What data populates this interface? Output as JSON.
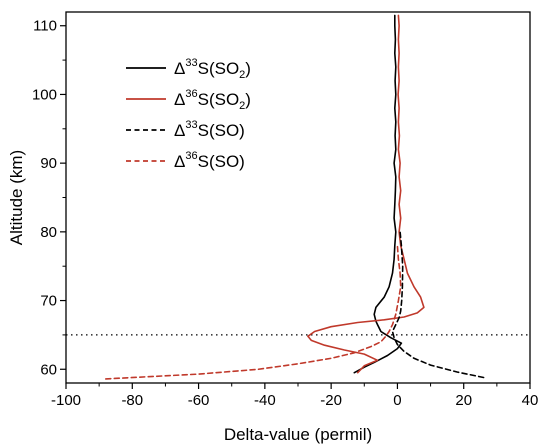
{
  "chart_data": {
    "type": "line",
    "title": "",
    "xlabel": "Delta-value (permil)",
    "ylabel": "Altitude (km)",
    "xlim": [
      -100,
      40
    ],
    "ylim": [
      58,
      112
    ],
    "x_ticks": [
      -100,
      -80,
      -60,
      -40,
      -20,
      0,
      20,
      40
    ],
    "y_ticks": [
      60,
      70,
      80,
      90,
      100,
      110
    ],
    "x_tick_labels": [
      "-100",
      "-80",
      "-60",
      "-40",
      "-20",
      "0",
      "20",
      "40"
    ],
    "y_tick_labels": [
      "60",
      "70",
      "80",
      "90",
      "100",
      "110"
    ],
    "reference_line_altitude": 65,
    "grid": false,
    "legend_placement": "top-left",
    "series": [
      {
        "name": "Δ33S(SO2)",
        "label_parts": {
          "delta": "Δ",
          "mass": "33",
          "element": "S(SO",
          "sub": "2",
          "close": ")"
        },
        "color": "#000000",
        "dash": "solid",
        "points": [
          [
            -13,
            59.5
          ],
          [
            -10,
            60.3
          ],
          [
            -7,
            61
          ],
          [
            -3,
            62
          ],
          [
            0,
            63
          ],
          [
            1.2,
            63.8
          ],
          [
            -2,
            64.6
          ],
          [
            -5,
            65.5
          ],
          [
            -6,
            66.5
          ],
          [
            -6.5,
            67
          ],
          [
            -7,
            68
          ],
          [
            -6.5,
            69
          ],
          [
            -4,
            70.5
          ],
          [
            -2.5,
            72
          ],
          [
            -1.5,
            74
          ],
          [
            -1,
            76
          ],
          [
            -0.8,
            78
          ],
          [
            -0.5,
            80
          ],
          [
            -1,
            82
          ],
          [
            -0.8,
            84
          ],
          [
            -0.6,
            86
          ],
          [
            -0.5,
            88
          ],
          [
            -1,
            90
          ],
          [
            -0.5,
            92
          ],
          [
            -0.7,
            94
          ],
          [
            -0.5,
            96
          ],
          [
            -0.8,
            98
          ],
          [
            -0.5,
            100
          ],
          [
            -0.7,
            102
          ],
          [
            -0.5,
            104
          ],
          [
            -0.8,
            106
          ],
          [
            -0.6,
            108
          ],
          [
            -0.8,
            110
          ],
          [
            -0.8,
            111.5
          ]
        ]
      },
      {
        "name": "Δ36S(SO2)",
        "label_parts": {
          "delta": "Δ",
          "mass": "36",
          "element": "S(SO",
          "sub": "2",
          "close": ")"
        },
        "color": "#c0392b",
        "dash": "solid",
        "points": [
          [
            -12,
            59.5
          ],
          [
            -10,
            60.5
          ],
          [
            -6,
            61.3
          ],
          [
            -10,
            62.2
          ],
          [
            -16,
            62.8
          ],
          [
            -22,
            63.5
          ],
          [
            -26,
            64.2
          ],
          [
            -27,
            64.8
          ],
          [
            -25,
            65.5
          ],
          [
            -20,
            66.2
          ],
          [
            -12,
            66.8
          ],
          [
            -4,
            67.2
          ],
          [
            2,
            67.6
          ],
          [
            6,
            68.2
          ],
          [
            8,
            69
          ],
          [
            7,
            70.5
          ],
          [
            5,
            72
          ],
          [
            3,
            74
          ],
          [
            2,
            76
          ],
          [
            1,
            78
          ],
          [
            0.5,
            80
          ],
          [
            1,
            82
          ],
          [
            0.5,
            84
          ],
          [
            1,
            86
          ],
          [
            0.5,
            88
          ],
          [
            0.8,
            90
          ],
          [
            0.3,
            92
          ],
          [
            0.6,
            94
          ],
          [
            0.3,
            96
          ],
          [
            0.5,
            98
          ],
          [
            0.2,
            100
          ],
          [
            0.5,
            102
          ],
          [
            0.3,
            104
          ],
          [
            0.5,
            106
          ],
          [
            0.3,
            108
          ],
          [
            0.5,
            110
          ],
          [
            0.3,
            111.5
          ]
        ]
      },
      {
        "name": "Δ33S(SO)",
        "label_parts": {
          "delta": "Δ",
          "mass": "33",
          "element": "S(SO",
          "sub": "",
          "close": ")"
        },
        "color": "#000000",
        "dash": "dashed",
        "points": [
          [
            26,
            58.8
          ],
          [
            18,
            59.6
          ],
          [
            10,
            60.6
          ],
          [
            5,
            61.6
          ],
          [
            2,
            62.6
          ],
          [
            0,
            63.6
          ],
          [
            -1,
            64.6
          ],
          [
            -1.5,
            65.5
          ],
          [
            -0.5,
            66.5
          ],
          [
            0.5,
            67.5
          ],
          [
            1,
            68.5
          ],
          [
            1.3,
            70
          ],
          [
            1.5,
            72
          ],
          [
            1.6,
            75
          ],
          [
            1.2,
            78
          ],
          [
            0.8,
            80
          ]
        ]
      },
      {
        "name": "Δ36S(SO)",
        "label_parts": {
          "delta": "Δ",
          "mass": "36",
          "element": "S(SO",
          "sub": "",
          "close": ")"
        },
        "color": "#c0392b",
        "dash": "dashed",
        "points": [
          [
            -88,
            58.6
          ],
          [
            -60,
            59.3
          ],
          [
            -42,
            60
          ],
          [
            -30,
            60.8
          ],
          [
            -20,
            61.6
          ],
          [
            -13,
            62.4
          ],
          [
            -8,
            63.3
          ],
          [
            -5,
            64
          ],
          [
            -3.5,
            64.8
          ],
          [
            -2.5,
            65.5
          ],
          [
            -1.5,
            66.5
          ],
          [
            -0.5,
            68
          ],
          [
            0.3,
            70
          ],
          [
            1,
            72
          ],
          [
            0.8,
            74
          ],
          [
            0.3,
            76
          ],
          [
            0,
            78
          ]
        ]
      }
    ]
  }
}
